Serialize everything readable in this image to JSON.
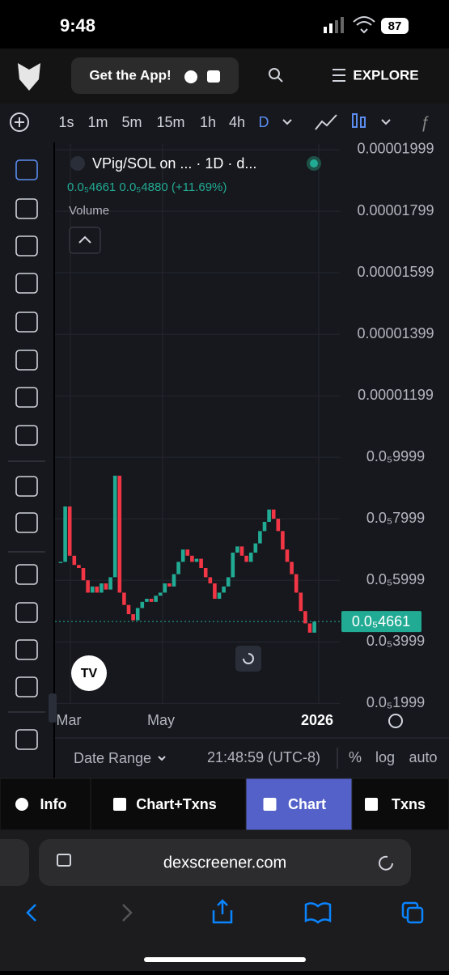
{
  "status": {
    "time": "9:48",
    "battery": "87"
  },
  "header": {
    "app_button": "Get the App!",
    "explore": "EXPLORE"
  },
  "toolbar": {
    "intervals": [
      "1s",
      "1m",
      "5m",
      "15m",
      "1h",
      "4h",
      "D"
    ]
  },
  "legend": {
    "pair": "VPig/SOL on ... · 1D · d...",
    "ohlc": "0.0₅4661 0.0₅4880 (+11.69%)",
    "volume": "Volume"
  },
  "chart_data": {
    "type": "candlestick",
    "close": [
      6.6e-06,
      8.4e-06,
      6.8e-06,
      6.5e-06,
      6.4e-06,
      6e-06,
      5.6e-06,
      5.8e-06,
      5.6e-06,
      5.9e-06,
      5.7e-06,
      6.1e-06,
      9.4e-06,
      5.6e-06,
      5.2e-06,
      4.9e-06,
      4.7e-06,
      5.1e-06,
      5.3e-06,
      5.4e-06,
      5.3e-06,
      5.5e-06,
      5.6e-06,
      5.9e-06,
      5.8e-06,
      6.2e-06,
      6.6e-06,
      7e-06,
      6.8e-06,
      6.6e-06,
      6.7e-06,
      6.4e-06,
      6.1e-06,
      5.9e-06,
      5.4e-06,
      5.6e-06,
      5.8e-06,
      6.1e-06,
      6.9e-06,
      7.1e-06,
      6.8e-06,
      6.6e-06,
      6.9e-06,
      7.2e-06,
      7.6e-06,
      7.9e-06,
      8.3e-06,
      8e-06,
      7.6e-06,
      7e-06,
      6.6e-06,
      6.2e-06,
      5.6e-06,
      5e-06,
      4.6e-06,
      4.3e-06,
      4.661e-06
    ],
    "up_color": "#22ab94",
    "down_color": "#f23645",
    "ylim": [
      1.8e-06,
      2.02e-05
    ],
    "yticks": [
      1.999e-05,
      1.799e-05,
      1.599e-05,
      1.399e-05,
      1.199e-05,
      {
        "value": 9.999e-06,
        "label": "0.0₅9999"
      },
      {
        "value": 7.999e-06,
        "label": "0.0₅7999"
      },
      {
        "value": 5.999e-06,
        "label": "0.0₅5999"
      },
      {
        "value": 3.999e-06,
        "label": "0.0₅3999"
      },
      {
        "value": 1.999e-06,
        "label": "0.0₅1999"
      }
    ],
    "last_price": {
      "value": 4.661e-06,
      "label": "0.0₅4661"
    },
    "categories": [
      "Mar",
      "May",
      "2026"
    ]
  },
  "footer": {
    "date_range": "Date Range",
    "clock": "21:48:59 (UTC-8)",
    "percent": "%",
    "log": "log",
    "auto": "auto"
  },
  "tabs": [
    "Info",
    "Chart+Txns",
    "Chart",
    "Txns"
  ],
  "browser": {
    "url": "dexscreener.com"
  }
}
